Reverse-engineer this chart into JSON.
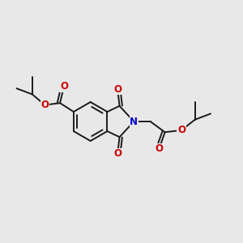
{
  "bg_color": "#e8e8e8",
  "bond_color": "#1a1a1a",
  "N_color": "#0000cc",
  "O_color": "#cc0000",
  "bond_width": 1.4,
  "figsize": [
    3.0,
    3.0
  ],
  "dpi": 100,
  "xlim": [
    0.05,
    0.95
  ],
  "ylim": [
    0.1,
    0.9
  ]
}
